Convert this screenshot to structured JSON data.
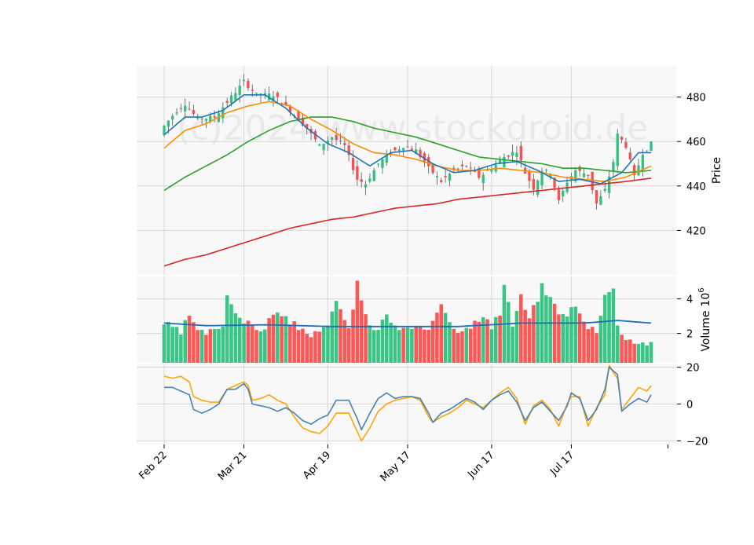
{
  "chart_data": {
    "type": "candlestick",
    "watermark": "(c)2024 www.stockdroid.de",
    "x_tick_labels": [
      "Feb 22",
      "Mar 21",
      "Apr 19",
      "May 17",
      "Jun 17",
      "Jul 17"
    ],
    "x_tick_indices": [
      0,
      19,
      39,
      58,
      78,
      97
    ],
    "num_bars": 117,
    "colors": {
      "up": "#2ec27e",
      "down": "#ff4d4d",
      "ma_fast": "#1f77b4",
      "ma_mid": "#ff8c00",
      "ma_slow": "#2ca02c",
      "ma_long": "#d62728",
      "volume_ma": "#1f6fb4",
      "osc_fast": "#4682b4",
      "osc_slow": "#ffa500",
      "panel_bg": "#f8f8f8",
      "grid": "#d8d8d8"
    },
    "price_panel": {
      "ylabel": "Price",
      "yticks": [
        420,
        440,
        460,
        480
      ],
      "ylim": [
        400,
        494
      ],
      "close_anchors": [
        [
          0,
          467
        ],
        [
          3,
          474
        ],
        [
          5,
          477
        ],
        [
          8,
          470
        ],
        [
          12,
          471
        ],
        [
          16,
          480
        ],
        [
          19,
          487
        ],
        [
          22,
          481
        ],
        [
          26,
          481
        ],
        [
          30,
          474
        ],
        [
          34,
          466
        ],
        [
          37,
          458
        ],
        [
          40,
          462
        ],
        [
          43,
          458
        ],
        [
          46,
          443
        ],
        [
          48,
          441
        ],
        [
          51,
          450
        ],
        [
          54,
          455
        ],
        [
          57,
          458
        ],
        [
          60,
          456
        ],
        [
          63,
          448
        ],
        [
          66,
          442
        ],
        [
          69,
          447
        ],
        [
          72,
          449
        ],
        [
          75,
          444
        ],
        [
          78,
          448
        ],
        [
          81,
          453
        ],
        [
          84,
          456
        ],
        [
          86,
          446
        ],
        [
          88,
          439
        ],
        [
          90,
          447
        ],
        [
          92,
          446
        ],
        [
          94,
          433
        ],
        [
          96,
          442
        ],
        [
          98,
          447
        ],
        [
          101,
          445
        ],
        [
          103,
          432
        ],
        [
          105,
          438
        ],
        [
          107,
          451
        ],
        [
          108,
          463
        ],
        [
          110,
          458
        ],
        [
          112,
          444
        ],
        [
          114,
          455
        ],
        [
          116,
          459
        ]
      ],
      "ma_fast": [
        [
          0,
          463
        ],
        [
          5,
          471
        ],
        [
          9,
          471
        ],
        [
          14,
          474
        ],
        [
          19,
          481
        ],
        [
          24,
          481
        ],
        [
          29,
          475
        ],
        [
          34,
          466
        ],
        [
          39,
          459
        ],
        [
          44,
          455
        ],
        [
          49,
          449
        ],
        [
          54,
          455
        ],
        [
          59,
          456
        ],
        [
          64,
          450
        ],
        [
          69,
          446
        ],
        [
          74,
          447
        ],
        [
          79,
          450
        ],
        [
          84,
          451
        ],
        [
          89,
          447
        ],
        [
          94,
          442
        ],
        [
          99,
          443
        ],
        [
          104,
          441
        ],
        [
          109,
          446
        ],
        [
          113,
          455
        ],
        [
          116,
          455
        ]
      ],
      "ma_mid": [
        [
          0,
          457
        ],
        [
          5,
          465
        ],
        [
          10,
          468
        ],
        [
          15,
          473
        ],
        [
          20,
          476
        ],
        [
          25,
          478
        ],
        [
          30,
          476
        ],
        [
          35,
          470
        ],
        [
          40,
          465
        ],
        [
          45,
          459
        ],
        [
          50,
          455
        ],
        [
          55,
          454
        ],
        [
          60,
          452
        ],
        [
          65,
          449
        ],
        [
          70,
          447
        ],
        [
          75,
          447
        ],
        [
          80,
          448
        ],
        [
          85,
          447
        ],
        [
          90,
          446
        ],
        [
          95,
          444
        ],
        [
          100,
          443
        ],
        [
          105,
          442
        ],
        [
          110,
          444
        ],
        [
          116,
          449
        ]
      ],
      "ma_slow": [
        [
          0,
          438
        ],
        [
          5,
          444
        ],
        [
          10,
          449
        ],
        [
          15,
          454
        ],
        [
          20,
          460
        ],
        [
          25,
          465
        ],
        [
          30,
          469
        ],
        [
          35,
          471
        ],
        [
          40,
          471
        ],
        [
          45,
          469
        ],
        [
          50,
          466
        ],
        [
          55,
          464
        ],
        [
          60,
          462
        ],
        [
          65,
          459
        ],
        [
          70,
          456
        ],
        [
          75,
          453
        ],
        [
          80,
          452
        ],
        [
          85,
          451
        ],
        [
          90,
          450
        ],
        [
          95,
          448
        ],
        [
          100,
          448
        ],
        [
          105,
          447
        ],
        [
          110,
          446
        ],
        [
          116,
          447
        ]
      ],
      "ma_long": [
        [
          0,
          404
        ],
        [
          5,
          407
        ],
        [
          10,
          409
        ],
        [
          15,
          412
        ],
        [
          20,
          415
        ],
        [
          25,
          418
        ],
        [
          30,
          421
        ],
        [
          35,
          423
        ],
        [
          40,
          425
        ],
        [
          45,
          426
        ],
        [
          50,
          428
        ],
        [
          55,
          430
        ],
        [
          60,
          431
        ],
        [
          65,
          432
        ],
        [
          70,
          434
        ],
        [
          75,
          435
        ],
        [
          80,
          436
        ],
        [
          85,
          437
        ],
        [
          90,
          438
        ],
        [
          95,
          439
        ],
        [
          100,
          440
        ],
        [
          105,
          441
        ],
        [
          110,
          442
        ],
        [
          116,
          443.5
        ]
      ]
    },
    "volume_panel": {
      "ylabel": "Volume",
      "yexp_base": "10",
      "yexp_power": "6",
      "yticks": [
        2,
        4
      ],
      "ylim": [
        0.3,
        5.3
      ],
      "volume_anchors": [
        [
          0,
          2.6
        ],
        [
          4,
          2.0
        ],
        [
          6,
          3.1
        ],
        [
          8,
          2.0
        ],
        [
          12,
          2.1
        ],
        [
          14,
          2.6
        ],
        [
          15,
          4.2
        ],
        [
          19,
          2.6
        ],
        [
          24,
          2.2
        ],
        [
          26,
          3.3
        ],
        [
          30,
          2.6
        ],
        [
          36,
          1.9
        ],
        [
          39,
          2.3
        ],
        [
          41,
          4.1
        ],
        [
          44,
          2.1
        ],
        [
          46,
          5.0
        ],
        [
          47,
          3.8
        ],
        [
          50,
          2.0
        ],
        [
          53,
          3.0
        ],
        [
          56,
          2.2
        ],
        [
          60,
          2.2
        ],
        [
          63,
          2.3
        ],
        [
          66,
          3.9
        ],
        [
          69,
          2.2
        ],
        [
          74,
          2.6
        ],
        [
          76,
          2.9
        ],
        [
          78,
          2.4
        ],
        [
          80,
          3.0
        ],
        [
          81,
          5.0
        ],
        [
          83,
          2.5
        ],
        [
          85,
          4.1
        ],
        [
          87,
          2.8
        ],
        [
          90,
          4.7
        ],
        [
          92,
          4.0
        ],
        [
          95,
          3.0
        ],
        [
          98,
          3.6
        ],
        [
          100,
          2.6
        ],
        [
          103,
          2.2
        ],
        [
          105,
          4.3
        ],
        [
          107,
          4.5
        ],
        [
          108,
          2.6
        ],
        [
          110,
          1.7
        ],
        [
          116,
          1.3
        ]
      ],
      "volume_ma": [
        [
          0,
          2.6
        ],
        [
          10,
          2.45
        ],
        [
          25,
          2.5
        ],
        [
          40,
          2.4
        ],
        [
          55,
          2.4
        ],
        [
          70,
          2.4
        ],
        [
          85,
          2.6
        ],
        [
          100,
          2.6
        ],
        [
          108,
          2.75
        ],
        [
          116,
          2.6
        ]
      ]
    },
    "oscillator_panel": {
      "yticks": [
        -20,
        0,
        20
      ],
      "ylim": [
        -22,
        21.5
      ],
      "line_a": [
        [
          0,
          9
        ],
        [
          2,
          9
        ],
        [
          4,
          7
        ],
        [
          6,
          5
        ],
        [
          7,
          -3
        ],
        [
          9,
          -5
        ],
        [
          11,
          -3
        ],
        [
          13,
          0
        ],
        [
          15,
          8
        ],
        [
          17,
          8
        ],
        [
          19,
          11
        ],
        [
          20,
          8
        ],
        [
          21,
          0
        ],
        [
          23,
          -1
        ],
        [
          25,
          -2
        ],
        [
          27,
          -4
        ],
        [
          29,
          -2
        ],
        [
          31,
          -5
        ],
        [
          33,
          -9
        ],
        [
          35,
          -11
        ],
        [
          37,
          -8
        ],
        [
          39,
          -6
        ],
        [
          41,
          2
        ],
        [
          44,
          2
        ],
        [
          46,
          -8
        ],
        [
          47,
          -14
        ],
        [
          49,
          -5
        ],
        [
          51,
          3
        ],
        [
          53,
          6
        ],
        [
          55,
          3
        ],
        [
          57,
          4
        ],
        [
          59,
          4
        ],
        [
          61,
          3
        ],
        [
          63,
          -5
        ],
        [
          64,
          -10
        ],
        [
          66,
          -5
        ],
        [
          68,
          -3
        ],
        [
          70,
          0
        ],
        [
          72,
          3
        ],
        [
          74,
          1
        ],
        [
          76,
          -3
        ],
        [
          78,
          2
        ],
        [
          80,
          5
        ],
        [
          82,
          7
        ],
        [
          84,
          1
        ],
        [
          86,
          -9
        ],
        [
          88,
          -2
        ],
        [
          90,
          1
        ],
        [
          92,
          -4
        ],
        [
          94,
          -9
        ],
        [
          96,
          -1
        ],
        [
          97,
          6
        ],
        [
          99,
          3
        ],
        [
          101,
          -9
        ],
        [
          103,
          -3
        ],
        [
          105,
          8
        ],
        [
          106,
          20
        ],
        [
          107,
          18
        ],
        [
          108,
          16
        ],
        [
          109,
          -4
        ],
        [
          111,
          0
        ],
        [
          113,
          3
        ],
        [
          115,
          1
        ],
        [
          116,
          5
        ]
      ],
      "line_b": [
        [
          0,
          15
        ],
        [
          2,
          14
        ],
        [
          4,
          15
        ],
        [
          6,
          12
        ],
        [
          7,
          4
        ],
        [
          9,
          2
        ],
        [
          11,
          1
        ],
        [
          13,
          1
        ],
        [
          15,
          8
        ],
        [
          17,
          10
        ],
        [
          19,
          12
        ],
        [
          20,
          10
        ],
        [
          21,
          2
        ],
        [
          23,
          3
        ],
        [
          25,
          5
        ],
        [
          27,
          2
        ],
        [
          29,
          0
        ],
        [
          31,
          -7
        ],
        [
          33,
          -13
        ],
        [
          35,
          -15
        ],
        [
          37,
          -16
        ],
        [
          39,
          -12
        ],
        [
          41,
          -5
        ],
        [
          44,
          -5
        ],
        [
          46,
          -15
        ],
        [
          47,
          -20
        ],
        [
          49,
          -13
        ],
        [
          51,
          -4
        ],
        [
          53,
          0
        ],
        [
          55,
          2
        ],
        [
          57,
          3
        ],
        [
          59,
          4
        ],
        [
          61,
          2
        ],
        [
          63,
          -7
        ],
        [
          64,
          -10
        ],
        [
          66,
          -7
        ],
        [
          68,
          -5
        ],
        [
          70,
          -2
        ],
        [
          72,
          2
        ],
        [
          74,
          0
        ],
        [
          76,
          -2
        ],
        [
          78,
          2
        ],
        [
          80,
          6
        ],
        [
          82,
          9
        ],
        [
          84,
          3
        ],
        [
          86,
          -11
        ],
        [
          88,
          -1
        ],
        [
          90,
          2
        ],
        [
          92,
          -3
        ],
        [
          94,
          -12
        ],
        [
          96,
          0
        ],
        [
          97,
          4
        ],
        [
          99,
          4
        ],
        [
          101,
          -12
        ],
        [
          103,
          -2
        ],
        [
          105,
          5
        ],
        [
          106,
          21
        ],
        [
          107,
          17
        ],
        [
          108,
          14
        ],
        [
          109,
          -3
        ],
        [
          111,
          3
        ],
        [
          113,
          9
        ],
        [
          115,
          7
        ],
        [
          116,
          10
        ]
      ]
    }
  }
}
